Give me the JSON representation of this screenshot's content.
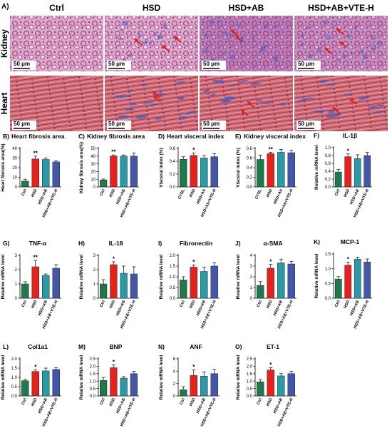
{
  "figure": {
    "panel_a_label": "A)",
    "columns": [
      "Ctrl",
      "HSD",
      "HSD+AB",
      "HSD+AB+VTE-H"
    ],
    "rows": [
      "Kidney",
      "Heart"
    ],
    "scale_bar": "50 μm",
    "colors": {
      "ctrl": "#1e7a4a",
      "hsd": "#e8201c",
      "ab": "#2a9aa6",
      "vte": "#4257a8",
      "kidney_tissue": "#b83a86",
      "heart_tissue": "#c9465e",
      "fibrosis_blue": "#3b5cc4",
      "arrow": "#e0201c"
    }
  },
  "chart_data": [
    {
      "id": "B",
      "type": "bar",
      "panel_label": "B)",
      "title": "Heart fibrosis area",
      "ylabel": "Heart fibrosis area(%)",
      "ylim": [
        0,
        40
      ],
      "yticks": [
        0,
        10,
        20,
        30,
        40
      ],
      "categories": [
        "Ctrl",
        "HSD",
        "HSD+AB",
        "HSD+AB+VTE-H"
      ],
      "values": [
        6,
        29,
        28.5,
        26
      ],
      "errors": [
        2,
        3,
        1.5,
        1.5
      ],
      "sig": [
        "",
        "**",
        "",
        ""
      ]
    },
    {
      "id": "C",
      "type": "bar",
      "panel_label": "C)",
      "title": "Kidney fibrosis area",
      "ylabel": "Kidney fibrosis area(%)",
      "ylim": [
        0,
        50
      ],
      "yticks": [
        0,
        10,
        20,
        30,
        40,
        50
      ],
      "categories": [
        "Ctrl",
        "HSD",
        "HSD+AB",
        "HSD+AB+VTE-H"
      ],
      "values": [
        9,
        40,
        40,
        40
      ],
      "errors": [
        1.2,
        1.5,
        1.5,
        4
      ],
      "sig": [
        "",
        "**",
        "",
        ""
      ]
    },
    {
      "id": "D",
      "type": "bar",
      "panel_label": "D)",
      "title": "Heart visceral index",
      "ylabel": "Visceral index (%)",
      "ylim": [
        0,
        0.6
      ],
      "yticks": [
        "0.0",
        "0.2",
        "0.4",
        "0.6"
      ],
      "categories": [
        "CTRL",
        "HSD",
        "HSD+Ab",
        "HSD+Ab+VTE-H"
      ],
      "values": [
        0.43,
        0.49,
        0.45,
        0.47
      ],
      "errors": [
        0.04,
        0.04,
        0.04,
        0.05
      ],
      "sig": [
        "",
        "*",
        "",
        ""
      ]
    },
    {
      "id": "E",
      "type": "bar",
      "panel_label": "E)",
      "title": "Kidney visceral index",
      "ylabel": "Visceral index (%)",
      "ylim": [
        0,
        0.8
      ],
      "yticks": [
        "0.0",
        "0.2",
        "0.4",
        "0.6",
        "0.8"
      ],
      "categories": [
        "CTRL",
        "HSD",
        "HSD+Ab",
        "HSD+Ab+VTE-H"
      ],
      "values": [
        0.57,
        0.69,
        0.72,
        0.71
      ],
      "errors": [
        0.09,
        0.03,
        0.06,
        0.05
      ],
      "sig": [
        "",
        "**",
        "",
        ""
      ]
    },
    {
      "id": "F",
      "type": "bar",
      "panel_label": "F)",
      "title": "IL-1β",
      "ylabel": "Relative mRNA level",
      "ylim": [
        0,
        1.0
      ],
      "yticks": [
        "0.0",
        "0.2",
        "0.4",
        "0.6",
        "0.8",
        "1.0"
      ],
      "categories": [
        "Ctrl",
        "HSD",
        "HSD+AB",
        "HSD+AB+VTE-H"
      ],
      "values": [
        0.38,
        0.77,
        0.72,
        0.8
      ],
      "errors": [
        0.07,
        0.07,
        0.1,
        0.08
      ],
      "sig": [
        "",
        "*",
        "",
        ""
      ]
    },
    {
      "id": "G",
      "type": "bar",
      "panel_label": "G)",
      "title": "TNF-α",
      "ylabel": "Relative mRNA level",
      "ylim": [
        0,
        3
      ],
      "yticks": [
        0,
        1,
        2,
        3
      ],
      "categories": [
        "Ctrl",
        "HSD",
        "HSD+AB",
        "HSD+AB+VTE-H"
      ],
      "values": [
        1.0,
        2.2,
        1.6,
        2.1
      ],
      "errors": [
        0.15,
        0.45,
        0.1,
        0.25
      ],
      "sig": [
        "",
        "**",
        "",
        ""
      ]
    },
    {
      "id": "H",
      "type": "bar",
      "panel_label": "H)",
      "title": "IL-18",
      "ylabel": "Relative mRNA level",
      "ylim": [
        0,
        3
      ],
      "yticks": [
        0,
        1,
        2,
        3
      ],
      "categories": [
        "Ctrl",
        "HSD",
        "HSD+AB",
        "HSD+AB+VTE-H"
      ],
      "values": [
        1.0,
        2.35,
        1.75,
        1.7
      ],
      "errors": [
        0.3,
        0.2,
        0.5,
        0.5
      ],
      "sig": [
        "",
        "*",
        "",
        ""
      ]
    },
    {
      "id": "I",
      "type": "bar",
      "panel_label": "I)",
      "title": "Fibronectin",
      "ylabel": "Relative mRNA level",
      "ylim": [
        0,
        2.0
      ],
      "yticks": [
        "0.0",
        "0.5",
        "1.0",
        "1.5",
        "2.0"
      ],
      "categories": [
        "Ctrl",
        "HSD",
        "HSD+AB",
        "HSD+AB+VTE-H"
      ],
      "values": [
        0.85,
        1.45,
        1.25,
        1.5
      ],
      "errors": [
        0.15,
        0.1,
        0.2,
        0.15
      ],
      "sig": [
        "",
        "*",
        "",
        ""
      ]
    },
    {
      "id": "J",
      "type": "bar",
      "panel_label": "J)",
      "title": "α-SMA",
      "ylabel": "Relative mRNA level",
      "ylim": [
        0,
        4
      ],
      "yticks": [
        0,
        1,
        2,
        3,
        4
      ],
      "categories": [
        "Ctrl",
        "HSD",
        "HSD+AB",
        "HSD+AB+VTE-H"
      ],
      "values": [
        1.2,
        2.8,
        3.3,
        3.2
      ],
      "errors": [
        0.35,
        0.35,
        0.35,
        0.25
      ],
      "sig": [
        "",
        "*",
        "",
        ""
      ]
    },
    {
      "id": "K",
      "type": "bar",
      "panel_label": "K)",
      "title": "MCP-1",
      "ylabel": "Relative mRNA level",
      "ylim": [
        0,
        1.5
      ],
      "yticks": [
        "0.0",
        "0.5",
        "1.0",
        "1.5"
      ],
      "categories": [
        "Ctrl",
        "HSD",
        "HSD+AB",
        "HSD+AB+VTE-H"
      ],
      "values": [
        0.65,
        1.12,
        1.32,
        1.23
      ],
      "errors": [
        0.08,
        0.1,
        0.07,
        0.1
      ],
      "sig": [
        "",
        "*",
        "",
        ""
      ]
    },
    {
      "id": "L",
      "type": "bar",
      "panel_label": "L)",
      "title": "Col1a1",
      "ylabel": "Relative mRNA level",
      "ylim": [
        0,
        2.0
      ],
      "yticks": [
        "0.0",
        "0.5",
        "1.0",
        "1.5",
        "2.0"
      ],
      "categories": [
        "Ctrl",
        "HSD",
        "HSD+AB",
        "HSD+AB+VTE-H"
      ],
      "values": [
        0.82,
        1.32,
        1.35,
        1.43
      ],
      "errors": [
        0.08,
        0.08,
        0.15,
        0.1
      ],
      "sig": [
        "",
        "*",
        "",
        ""
      ]
    },
    {
      "id": "M",
      "type": "bar",
      "panel_label": "M)",
      "title": "BNP",
      "ylabel": "Relative mRNA level",
      "ylim": [
        0,
        2.5
      ],
      "yticks": [
        "0.0",
        "0.5",
        "1.0",
        "1.5",
        "2.0",
        "2.5"
      ],
      "categories": [
        "Ctrl",
        "HSD",
        "HSD+AB",
        "HSD+AB+VTE-H"
      ],
      "values": [
        1.05,
        1.9,
        1.2,
        1.5
      ],
      "errors": [
        0.2,
        0.2,
        0.1,
        0.15
      ],
      "sig": [
        "",
        "*",
        "",
        ""
      ]
    },
    {
      "id": "N",
      "type": "bar",
      "panel_label": "N)",
      "title": "ANF",
      "ylabel": "Relative mRNA level",
      "ylim": [
        0,
        6
      ],
      "yticks": [
        0,
        2,
        4,
        6
      ],
      "categories": [
        "Ctrl",
        "HSD",
        "HSD+AB",
        "HSD+AB+VTE-H"
      ],
      "values": [
        1.0,
        3.3,
        3.2,
        3.6
      ],
      "errors": [
        0.5,
        0.9,
        0.7,
        0.7
      ],
      "sig": [
        "",
        "*",
        "",
        ""
      ]
    },
    {
      "id": "O",
      "type": "bar",
      "panel_label": "O)",
      "title": "ET-1",
      "ylabel": "Relative mRNA level",
      "ylim": [
        0,
        2.5
      ],
      "yticks": [
        "0.0",
        "0.5",
        "1.0",
        "1.5",
        "2.0",
        "2.5"
      ],
      "categories": [
        "Ctrl",
        "HSD",
        "HSD+AB",
        "HSD+AB+VTE-H"
      ],
      "values": [
        0.95,
        1.75,
        1.35,
        1.5
      ],
      "errors": [
        0.15,
        0.15,
        0.15,
        0.15
      ],
      "sig": [
        "",
        "*",
        "",
        ""
      ]
    }
  ]
}
